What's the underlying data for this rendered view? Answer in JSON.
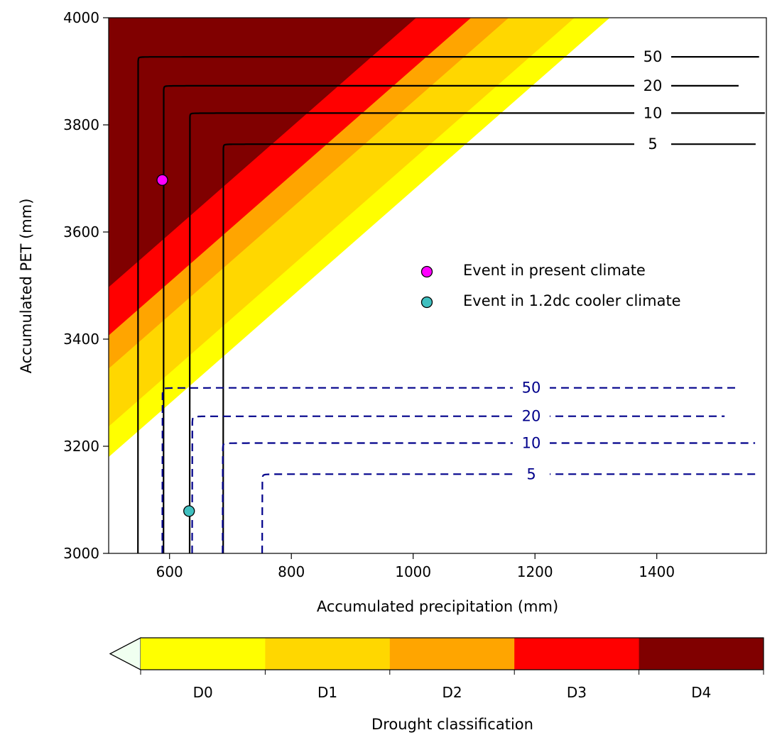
{
  "chart_data": {
    "type": "contour",
    "xlabel": "Accumulated precipitation (mm)",
    "ylabel": "Accumulated PET (mm)",
    "xlim": [
      500,
      1580
    ],
    "ylim": [
      3000,
      4000
    ],
    "xticks": [
      600,
      800,
      1000,
      1200,
      1400
    ],
    "yticks": [
      3000,
      3200,
      3400,
      3600,
      3800,
      4000
    ],
    "drought_bands": [
      {
        "label": "D0",
        "color": "#ffff00",
        "line": [
          [
            500,
            3180
          ],
          [
            1323,
            4000
          ]
        ]
      },
      {
        "label": "D1",
        "color": "#ffd700",
        "line": [
          [
            500,
            3237
          ],
          [
            1265,
            4000
          ]
        ]
      },
      {
        "label": "D2",
        "color": "#ffa500",
        "line": [
          [
            500,
            3345
          ],
          [
            1157,
            4000
          ]
        ]
      },
      {
        "label": "D3",
        "color": "#ff0000",
        "line": [
          [
            500,
            3407
          ],
          [
            1095,
            4000
          ]
        ]
      },
      {
        "label": "D4",
        "color": "#800000",
        "line": [
          [
            500,
            3497
          ],
          [
            1005,
            4000
          ]
        ]
      }
    ],
    "present_contours": {
      "color": "#000000",
      "style": "solid",
      "levels": [
        {
          "label": "50",
          "asymptote_x": 548,
          "asymptote_y": 3927
        },
        {
          "label": "20",
          "asymptote_x": 590,
          "asymptote_y": 3873
        },
        {
          "label": "10",
          "asymptote_x": 633,
          "asymptote_y": 3822
        },
        {
          "label": "5",
          "asymptote_x": 688,
          "asymptote_y": 3764
        }
      ]
    },
    "cooler_contours": {
      "color": "#00008b",
      "style": "dashed",
      "levels": [
        {
          "label": "50",
          "asymptote_x": 588,
          "asymptote_y": 3309
        },
        {
          "label": "20",
          "asymptote_x": 637,
          "asymptote_y": 3256
        },
        {
          "label": "10",
          "asymptote_x": 687,
          "asymptote_y": 3206
        },
        {
          "label": "5",
          "asymptote_x": 752,
          "asymptote_y": 3148
        }
      ]
    },
    "events": [
      {
        "label": "Event in present climate",
        "x": 588,
        "y": 3697,
        "color": "#ff00ff"
      },
      {
        "label": "Event in 1.2dc cooler climate",
        "x": 632,
        "y": 3079,
        "color": "#40c0c0"
      }
    ],
    "legend_placement": "center-right",
    "colorbar": {
      "label": "Drought classification",
      "categories": [
        "D0",
        "D1",
        "D2",
        "D3",
        "D4"
      ],
      "colors": [
        "#ffff00",
        "#ffd700",
        "#ffa500",
        "#ff0000",
        "#800000"
      ],
      "extend_color": "#f0fff0"
    }
  }
}
